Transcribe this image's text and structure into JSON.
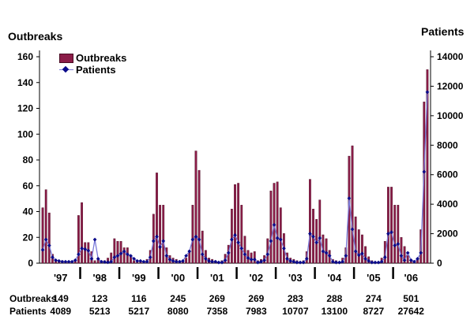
{
  "chart_data": {
    "type": "bar",
    "title": "",
    "y_left_label": "Outbreaks",
    "y_right_label": "Patients",
    "y_left_ticks": [
      "0",
      "20",
      "40",
      "60",
      "80",
      "100",
      "120",
      "140",
      "160"
    ],
    "y_right_ticks": [
      "0",
      "2000",
      "4000",
      "6000",
      "8000",
      "10000",
      "12000",
      "14000"
    ],
    "y_left_lim": [
      0,
      160
    ],
    "y_right_lim": [
      0,
      14000
    ],
    "legend_position": "top-left",
    "colors": {
      "bars": "#8b1c48",
      "bar_edge": "#4a0c24",
      "line": "#7a7ad8",
      "markers": "#0a0a8a"
    },
    "years": [
      "'97",
      "'98",
      "'99",
      "'00",
      "'01",
      "'02",
      "'03",
      "'04",
      "'05",
      "'06"
    ],
    "series": [
      {
        "name": "Outbreaks",
        "axis": "left",
        "kind": "bar",
        "values": [
          43,
          57,
          39,
          7,
          3,
          2,
          2,
          1,
          1,
          1,
          3,
          37,
          47,
          16,
          16,
          9,
          2,
          3,
          2,
          2,
          4,
          8,
          19,
          17,
          17,
          12,
          12,
          6,
          2,
          1,
          1,
          1,
          3,
          10,
          38,
          70,
          45,
          45,
          12,
          6,
          4,
          3,
          2,
          2,
          4,
          10,
          45,
          87,
          72,
          25,
          10,
          4,
          3,
          2,
          1,
          2,
          7,
          14,
          42,
          61,
          62,
          45,
          21,
          10,
          8,
          9,
          2,
          3,
          6,
          19,
          56,
          62,
          63,
          43,
          23,
          8,
          4,
          3,
          2,
          1,
          2,
          9,
          65,
          42,
          34,
          49,
          22,
          19,
          10,
          3,
          2,
          1,
          4,
          12,
          83,
          91,
          36,
          26,
          22,
          13,
          5,
          2,
          1,
          1,
          4,
          17,
          59,
          59,
          45,
          45,
          20,
          13,
          6,
          3,
          2,
          4,
          26,
          125,
          150
        ]
      },
      {
        "name": "Patients",
        "axis": "right",
        "kind": "line",
        "values": [
          900,
          1600,
          1200,
          400,
          200,
          150,
          100,
          100,
          100,
          100,
          200,
          600,
          1000,
          950,
          850,
          300,
          1600,
          300,
          100,
          80,
          60,
          100,
          400,
          500,
          650,
          800,
          600,
          500,
          300,
          150,
          150,
          100,
          100,
          400,
          1500,
          1800,
          1100,
          1500,
          500,
          250,
          150,
          100,
          100,
          150,
          500,
          800,
          1600,
          1800,
          1600,
          600,
          300,
          150,
          100,
          100,
          50,
          50,
          200,
          700,
          1600,
          1900,
          1400,
          1000,
          600,
          350,
          250,
          250,
          50,
          100,
          200,
          600,
          1500,
          2600,
          1700,
          1600,
          1000,
          300,
          150,
          100,
          50,
          50,
          50,
          300,
          2000,
          1800,
          1400,
          1700,
          800,
          700,
          500,
          100,
          50,
          50,
          100,
          500,
          4400,
          2300,
          800,
          550,
          650,
          300,
          150,
          50,
          50,
          50,
          100,
          400,
          2000,
          2100,
          1200,
          1300,
          500,
          200,
          700,
          200,
          100,
          300,
          700,
          6200,
          11600
        ]
      }
    ]
  },
  "summary": {
    "outbreaks_label": "Outbreaks",
    "patients_label": "Patients",
    "columns": [
      {
        "outbreaks": "149",
        "patients": "4089"
      },
      {
        "outbreaks": "123",
        "patients": "5213"
      },
      {
        "outbreaks": "116",
        "patients": "5217"
      },
      {
        "outbreaks": "245",
        "patients": "8080"
      },
      {
        "outbreaks": "269",
        "patients": "7358"
      },
      {
        "outbreaks": "269",
        "patients": "7983"
      },
      {
        "outbreaks": "283",
        "patients": "10707"
      },
      {
        "outbreaks": "288",
        "patients": "13100"
      },
      {
        "outbreaks": "274",
        "patients": "8727"
      },
      {
        "outbreaks": "501",
        "patients": "27642"
      }
    ]
  }
}
